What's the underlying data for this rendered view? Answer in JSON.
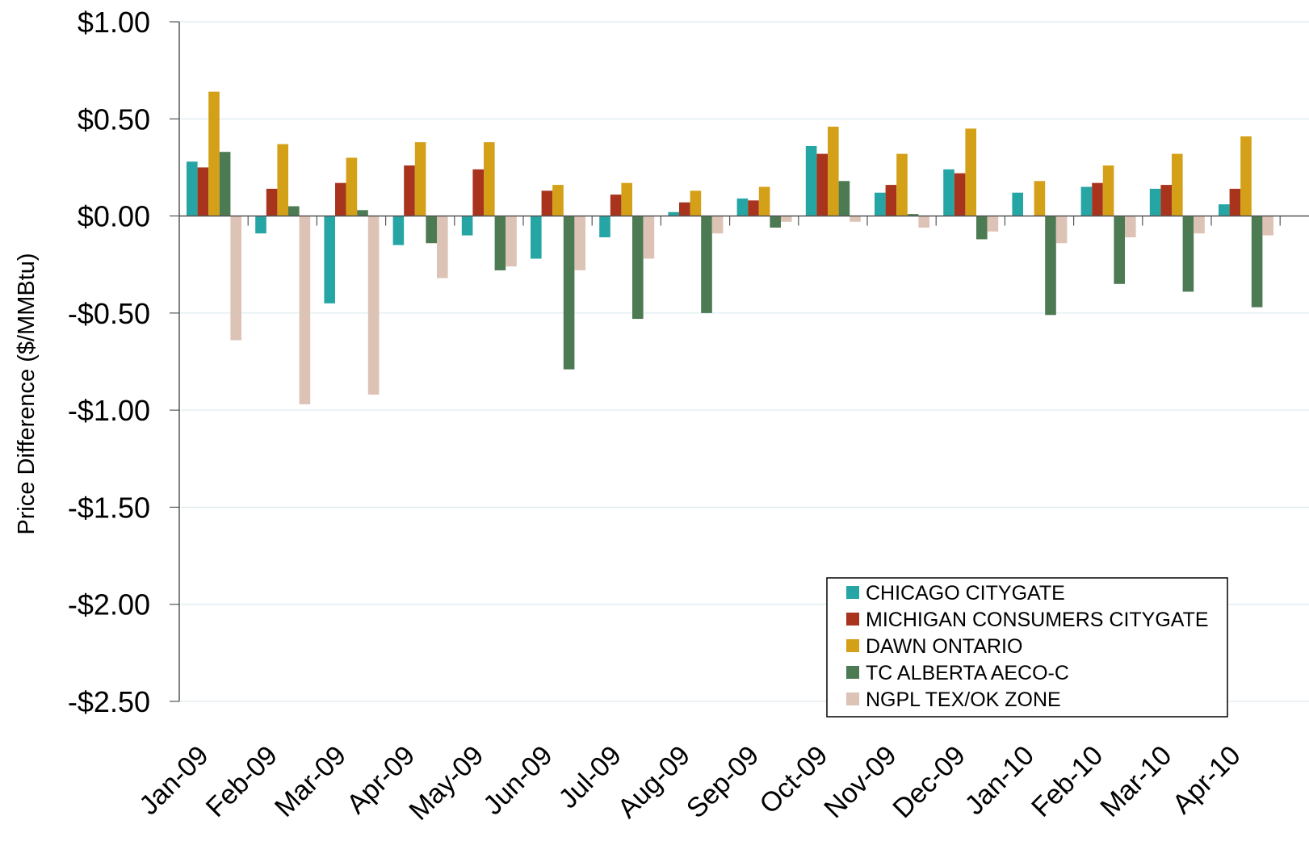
{
  "chart_data": {
    "type": "bar",
    "title": "",
    "xlabel": "",
    "ylabel": "Price Difference  ($/MMBtu)",
    "ylim": [
      -2.5,
      1.0
    ],
    "yticks": [
      1.0,
      0.5,
      0.0,
      -0.5,
      -1.0,
      -1.5,
      -2.0,
      -2.5
    ],
    "ytick_labels": [
      "$1.00",
      "$0.50",
      "$0.00",
      "-$0.50",
      "-$1.00",
      "-$1.50",
      "-$2.00",
      "-$2.50"
    ],
    "grid": true,
    "legend_position": "bottom-right",
    "categories": [
      "Jan-09",
      "Feb-09",
      "Mar-09",
      "Apr-09",
      "May-09",
      "Jun-09",
      "Jul-09",
      "Aug-09",
      "Sep-09",
      "Oct-09",
      "Nov-09",
      "Dec-09",
      "Jan-10",
      "Feb-10",
      "Mar-10",
      "Apr-10"
    ],
    "series": [
      {
        "name": "CHICAGO CITYGATE",
        "color": "#26a5a5",
        "values": [
          0.28,
          -0.09,
          -0.45,
          -0.15,
          -0.1,
          -0.22,
          -0.11,
          0.02,
          0.09,
          0.36,
          0.12,
          0.24,
          0.12,
          0.15,
          0.14,
          0.06
        ]
      },
      {
        "name": "MICHIGAN CONSUMERS CITYGATE",
        "color": "#a8341e",
        "values": [
          0.25,
          0.14,
          0.17,
          0.26,
          0.24,
          0.13,
          0.11,
          0.07,
          0.08,
          0.32,
          0.16,
          0.22,
          0.0,
          0.17,
          0.16,
          0.14
        ]
      },
      {
        "name": "DAWN ONTARIO",
        "color": "#d4a017",
        "values": [
          0.64,
          0.37,
          0.3,
          0.38,
          0.38,
          0.16,
          0.17,
          0.13,
          0.15,
          0.46,
          0.32,
          0.45,
          0.18,
          0.26,
          0.32,
          0.41
        ]
      },
      {
        "name": "TC ALBERTA AECO-C",
        "color": "#4c7a52",
        "values": [
          0.33,
          0.05,
          0.03,
          -0.14,
          -0.28,
          -0.79,
          -0.53,
          -0.5,
          -0.06,
          0.18,
          0.01,
          -0.12,
          -0.51,
          -0.35,
          -0.39,
          -0.47
        ]
      },
      {
        "name": "NGPL TEX/OK ZONE",
        "color": "#dcc3b6",
        "values": [
          -0.64,
          -0.97,
          -0.92,
          -0.32,
          -0.26,
          -0.28,
          -0.22,
          -0.09,
          -0.03,
          -0.03,
          -0.06,
          -0.08,
          -0.14,
          -0.11,
          -0.09,
          -0.1
        ]
      }
    ]
  }
}
